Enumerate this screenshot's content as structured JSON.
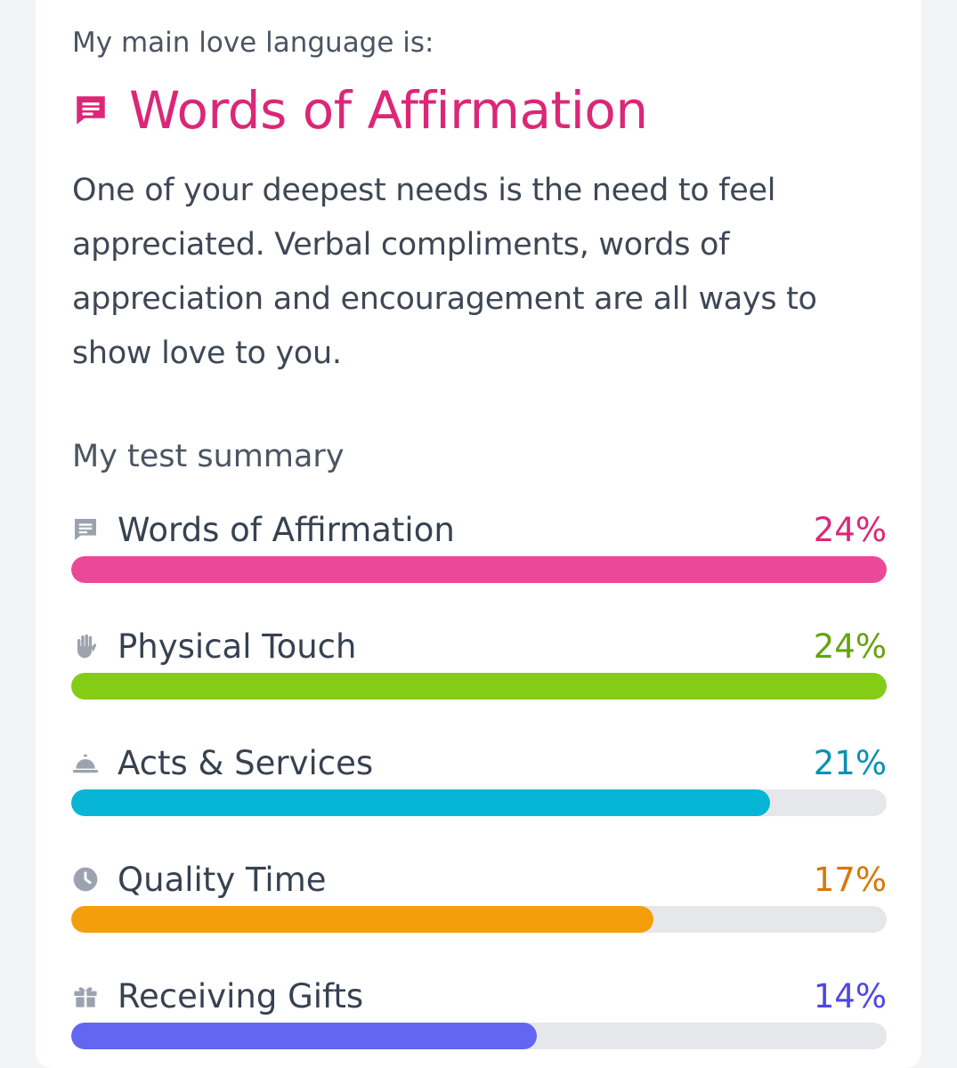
{
  "result": {
    "intro": "My main love language is:",
    "title": "Words of Affirmation",
    "icon": "chat-bubble-icon",
    "accent_color": "#db2777",
    "description": "One of your deepest needs is the need to feel appreciated. Verbal compliments, words of appreciation and encouragement are all ways to show love to you."
  },
  "summary": {
    "title": "My test summary",
    "items": [
      {
        "label": "Words of Affirmation",
        "percent": "24%",
        "fill_fraction": 1.0,
        "color": "#ec4899",
        "text_color": "#db2777",
        "icon": "chat-bubble-icon"
      },
      {
        "label": "Physical Touch",
        "percent": "24%",
        "fill_fraction": 1.0,
        "color": "#84cc16",
        "text_color": "#65a30d",
        "icon": "hand-icon"
      },
      {
        "label": "Acts & Services",
        "percent": "21%",
        "fill_fraction": 0.857,
        "color": "#06b6d4",
        "text_color": "#0891b2",
        "icon": "service-bell-icon"
      },
      {
        "label": "Quality Time",
        "percent": "17%",
        "fill_fraction": 0.714,
        "color": "#f59e0b",
        "text_color": "#d97706",
        "icon": "clock-icon"
      },
      {
        "label": "Receiving Gifts",
        "percent": "14%",
        "fill_fraction": 0.571,
        "color": "#6366f1",
        "text_color": "#4f46e5",
        "icon": "gift-icon"
      }
    ]
  }
}
